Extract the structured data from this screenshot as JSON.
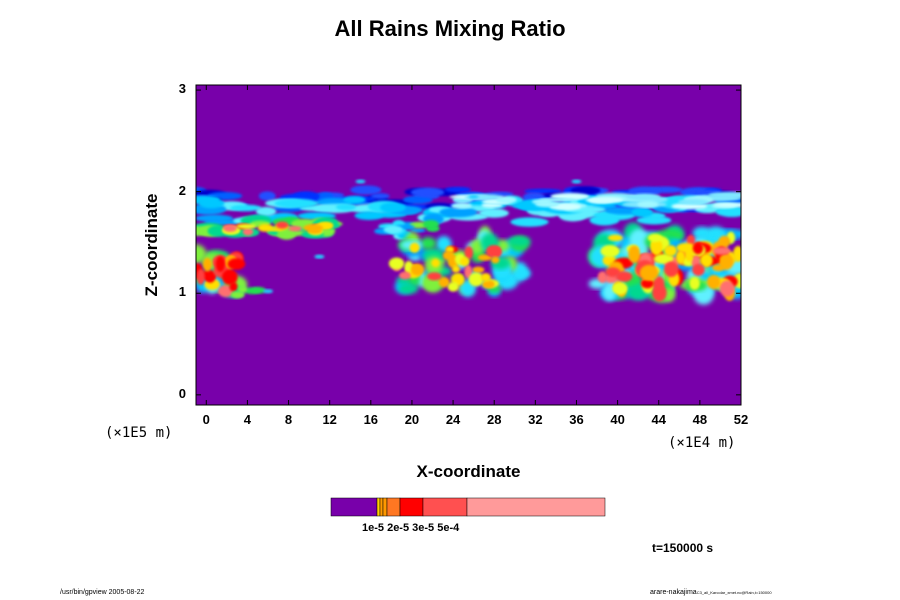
{
  "chart_data": {
    "type": "heatmap",
    "title": "All Rains Mixing Ratio",
    "xlabel": "X-coordinate",
    "ylabel": "Z-coordinate",
    "x_unit": "(×1E4 m)",
    "y_unit": "(×1E5 m)",
    "xlim": [
      -1,
      52
    ],
    "ylim": [
      -0.1,
      3.05
    ],
    "x_ticks": [
      "0",
      "4",
      "8",
      "12",
      "16",
      "20",
      "24",
      "28",
      "32",
      "36",
      "40",
      "44",
      "48",
      "52"
    ],
    "y_ticks": [
      "0",
      "1",
      "2",
      "3"
    ],
    "colorbar": {
      "colors": [
        "#7800aa",
        "#ffd000",
        "#ff9900",
        "#ff7722",
        "#ff0000",
        "#ff5050",
        "#ff9a9a"
      ],
      "tick_label": "1e-5 2e-5 3e-5 5e-4"
    },
    "background_color": "#7800aa",
    "rain_bands": [
      {
        "x": [
          -1,
          52
        ],
        "z": [
          1.55,
          2.0
        ],
        "level": "moist-layer"
      },
      {
        "x": [
          -1,
          5
        ],
        "z": [
          0.95,
          1.45
        ],
        "level": "heavy"
      },
      {
        "x": [
          18,
          32
        ],
        "z": [
          0.95,
          1.6
        ],
        "level": "heavy"
      },
      {
        "x": [
          38,
          52
        ],
        "z": [
          0.95,
          1.6
        ],
        "level": "heavy"
      }
    ]
  },
  "time_label": "t=150000 s",
  "footer": {
    "left": "/usr/bin/gpview 2005-08-22",
    "right": "arare-nakajima",
    "right_small": "C3_all_Karcolar_xmet.nc@Rain,t=150000"
  }
}
